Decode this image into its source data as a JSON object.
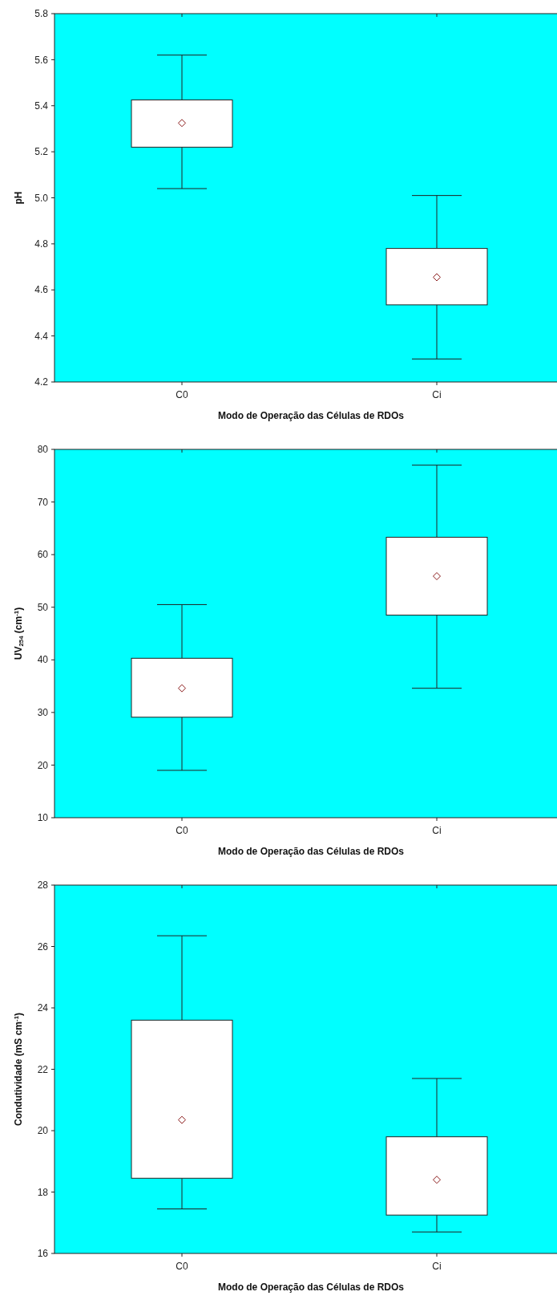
{
  "chart_data": [
    {
      "type": "box",
      "categories": [
        "C0",
        "Ci"
      ],
      "ylabel": "pH",
      "xlabel": "Modo de Operação das Células de RDOs",
      "ylim": [
        4.2,
        5.8
      ],
      "yticks": [
        4.2,
        4.4,
        4.6,
        4.8,
        {
          "value": 5,
          "label": "5.0"
        },
        5.2,
        5.4,
        5.6,
        5.8
      ],
      "grid": false,
      "marker": "diamond",
      "boxes": [
        {
          "low": 5.04,
          "q1": 5.22,
          "median": 5.325,
          "q3": 5.425,
          "high": 5.62
        },
        {
          "low": 4.3,
          "q1": 4.535,
          "median": 4.655,
          "q3": 4.78,
          "high": 5.01
        }
      ]
    },
    {
      "type": "box",
      "categories": [
        "C0",
        "Ci"
      ],
      "ylabel": "UV$_{254}$ (cm$^{-1}$)",
      "xlabel": "Modo de Operação das Células de RDOs",
      "ylim": [
        10,
        80
      ],
      "yticks": [
        10,
        20,
        30,
        40,
        50,
        60,
        70,
        80
      ],
      "grid": false,
      "marker": "diamond",
      "boxes": [
        {
          "low": 19,
          "q1": 29.1,
          "median": 34.6,
          "q3": 40.3,
          "high": 50.5
        },
        {
          "low": 34.6,
          "q1": 48.5,
          "median": 55.9,
          "q3": 63.3,
          "high": 77
        }
      ]
    },
    {
      "type": "box",
      "categories": [
        "C0",
        "Ci"
      ],
      "ylabel": "Condutividade (mS cm$^{-1}$)",
      "xlabel": "Modo de Operação das Células de RDOs",
      "ylim": [
        16,
        28
      ],
      "yticks": [
        16,
        18,
        20,
        22,
        24,
        26,
        28
      ],
      "grid": false,
      "marker": "diamond",
      "boxes": [
        {
          "low": 17.45,
          "q1": 18.45,
          "median": 20.35,
          "q3": 23.6,
          "high": 26.35
        },
        {
          "low": 16.7,
          "q1": 17.25,
          "median": 18.4,
          "q3": 19.8,
          "high": 21.7
        }
      ]
    }
  ]
}
